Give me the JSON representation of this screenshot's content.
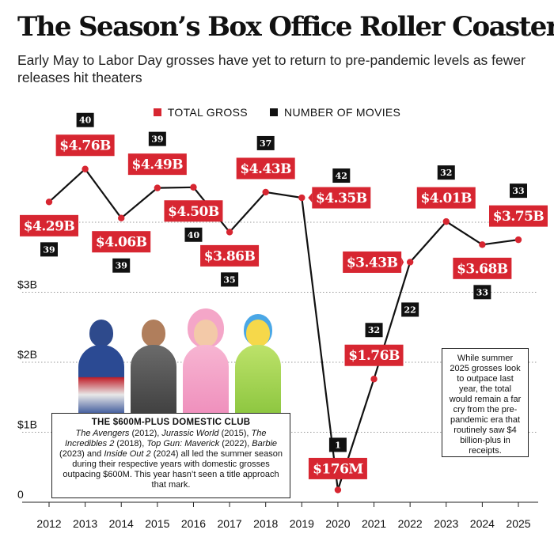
{
  "title": "The Season’s Box Office Roller Coaster",
  "subtitle": "Early May to Labor Day grosses have yet to return to pre-pandemic levels as fewer releases hit theaters",
  "legend": {
    "gross": "TOTAL GROSS",
    "movies": "NUMBER OF MOVIES"
  },
  "colors": {
    "accent": "#d72631",
    "dark": "#111111",
    "grid": "#999999"
  },
  "club_box": {
    "heading": "THE $600M-PLUS DOMESTIC CLUB",
    "films": [
      {
        "title": "The Avengers",
        "rest": " (2012), "
      },
      {
        "title": "Jurassic World",
        "rest": " (2015), "
      },
      {
        "title": "The Incredibles 2",
        "rest": " (2018), "
      },
      {
        "title": "Top Gun: Maverick",
        "rest": " (2022), "
      },
      {
        "title": "Barbie",
        "rest": " (2023) and "
      },
      {
        "title": "Inside Out 2",
        "rest": " (2024)"
      }
    ],
    "tail": " all led the summer season during their respective years with domestic grosses outpacing $600M. This year hasn’t seen a title approach that mark."
  },
  "note": "While summer 2025 grosses look to outpace last year, the total would remain a far cry from the pre-pandemic era that routinely saw $4 billion-plus in receipts.",
  "chart_data": {
    "type": "line",
    "title": "The Season’s Box Office Roller Coaster",
    "x": [
      "2012",
      "2013",
      "2014",
      "2015",
      "2016",
      "2017",
      "2018",
      "2019",
      "2020",
      "2021",
      "2022",
      "2023",
      "2024",
      "2025"
    ],
    "y_ticks": [
      {
        "value": 0,
        "label": "0"
      },
      {
        "value": 1,
        "label": "$1B"
      },
      {
        "value": 2,
        "label": "$2B"
      },
      {
        "value": 3,
        "label": "$3B"
      }
    ],
    "ylim": [
      0,
      5
    ],
    "grid": true,
    "series": [
      {
        "name": "TOTAL GROSS",
        "unit": "billions USD",
        "values": [
          4.29,
          4.76,
          4.06,
          4.49,
          4.5,
          3.86,
          4.43,
          4.35,
          0.176,
          1.76,
          3.43,
          4.01,
          3.68,
          3.75
        ],
        "labels": [
          "$4.29B",
          "$4.76B",
          "$4.06B",
          "$4.49B",
          "$4.50B",
          "$3.86B",
          "$4.43B",
          "$4.35B",
          "$176M",
          "$1.76B",
          "$3.43B",
          "$4.01B",
          "$3.68B",
          "$3.75B"
        ],
        "label_side": [
          "below",
          "above",
          "below",
          "above",
          "below",
          "below",
          "above",
          "right",
          "below",
          "above",
          "left",
          "above",
          "below",
          "above"
        ]
      },
      {
        "name": "NUMBER OF MOVIES",
        "values": [
          39,
          40,
          39,
          39,
          40,
          35,
          37,
          42,
          1,
          32,
          22,
          32,
          33,
          33
        ]
      }
    ]
  }
}
